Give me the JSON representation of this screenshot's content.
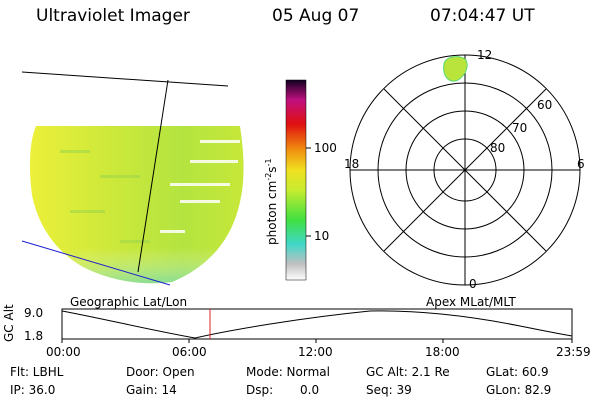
{
  "header": {
    "instrument": "Ultraviolet Imager",
    "date": "05 Aug 07",
    "time": "07:04:47 UT"
  },
  "colorbar": {
    "unit_text": "photon cm",
    "unit_exp1": "-2",
    "unit_s": "s",
    "unit_exp2": "-1",
    "ticks": [
      "100",
      "10"
    ]
  },
  "polar_plot": {
    "mlt_labels": {
      "top": "12",
      "left": "18",
      "right": "6",
      "bottom": "0"
    },
    "lat_labels": [
      "60",
      "70",
      "80"
    ]
  },
  "panel_labels": {
    "left": "Geographic Lat/Lon",
    "right": "Apex  MLat/MLT"
  },
  "altitude_plot": {
    "ylabel": "GC Alt",
    "ytick_top": "9.0",
    "ytick_bottom": "1.8",
    "xticks": [
      "00:00",
      "06:00",
      "12:00",
      "18:00",
      "23:59"
    ]
  },
  "status": {
    "flt": "Flt: LBHL",
    "ip": "IP: 36.0",
    "door": "Door: Open",
    "gain": "Gain: 14",
    "mode": "Mode: Normal",
    "dsp_label": "Dsp:",
    "dsp_value": "0.0",
    "gc_alt": "GC Alt: 2.1 Re",
    "seq": "Seq: 39",
    "glat": "GLat:  60.9",
    "glon": "GLon:  82.9"
  },
  "colors": {
    "image_main": "#c8e838",
    "image_edge": "#e8ec30",
    "image_bottom": "#58d8b0",
    "horizon_line": "#2020d0",
    "current_time_marker": "#e02020"
  }
}
